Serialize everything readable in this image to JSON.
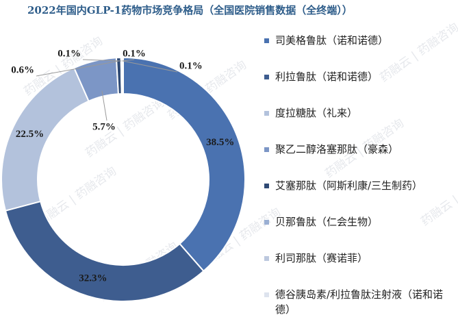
{
  "title": "2022年国内GLP-1药物市场竞争格局（全国医院销售数据（全终端））",
  "watermark": "药融云 | 药融咨询",
  "chart_data": {
    "type": "pie",
    "categories": [
      "司美格鲁肽（诺和诺德）",
      "利拉鲁肽（诺和诺德）",
      "度拉糖肽（礼来）",
      "聚乙二醇洛塞那肽（豪森）",
      "艾塞那肽（阿斯利康/三生制药）",
      "贝那鲁肽（仁会生物）",
      "利司那肽（赛诺菲）",
      "德谷胰岛素/利拉鲁肽注射液（诺和诺德）"
    ],
    "values": [
      38.5,
      32.3,
      22.5,
      5.7,
      0.6,
      0.1,
      0.1,
      0.1
    ],
    "labels": [
      "38.5%",
      "32.3%",
      "22.5%",
      "5.7%",
      "0.6%",
      "0.1%",
      "0.1%",
      "0.1%"
    ],
    "colors": [
      "#4a72b0",
      "#3e5d8f",
      "#b3c2dc",
      "#7c96c6",
      "#2f4a74",
      "#9aafd3",
      "#bcc8de",
      "#dde3ee"
    ],
    "donut": true,
    "legend_position": "right"
  }
}
